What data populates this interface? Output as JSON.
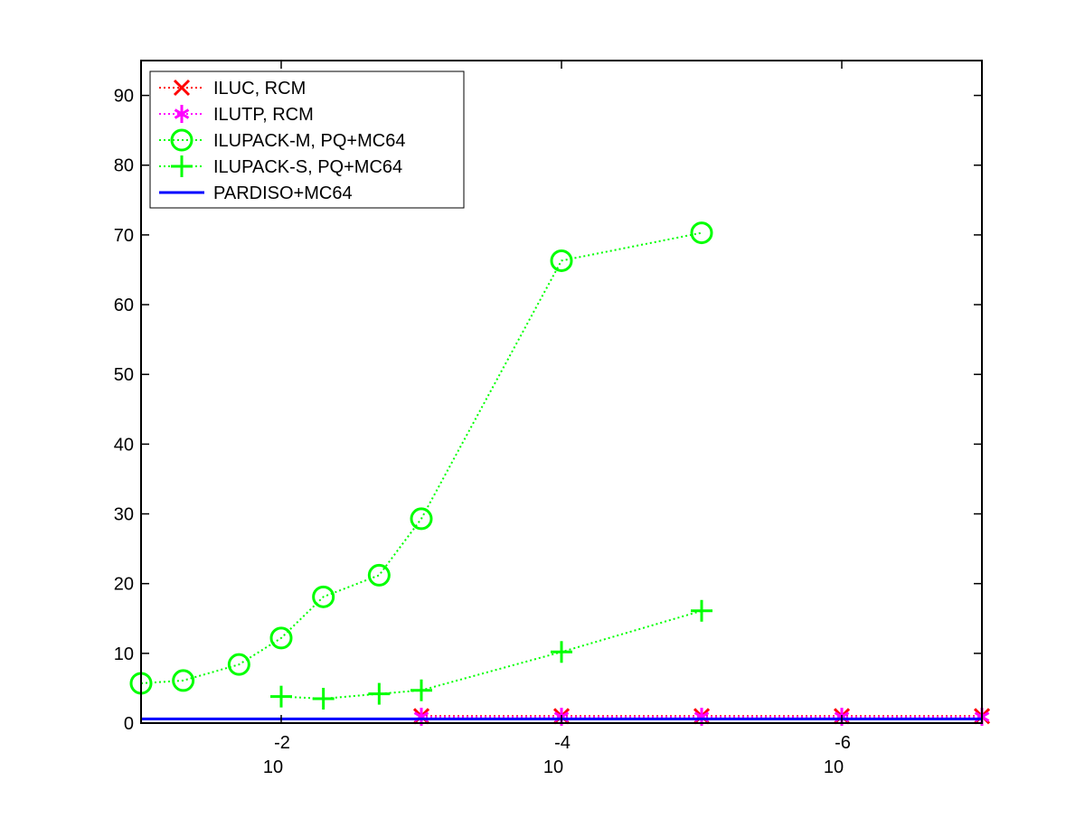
{
  "chart_data": {
    "type": "line",
    "title": "",
    "xlabel": "",
    "ylabel": "",
    "x_scale": "log",
    "x_reversed": true,
    "xlim": [
      0.1,
      1e-07
    ],
    "ylim": [
      0,
      95
    ],
    "x_ticks": [
      {
        "base": "10",
        "exp": "-2"
      },
      {
        "base": "10",
        "exp": "-4"
      },
      {
        "base": "10",
        "exp": "-6"
      }
    ],
    "y_ticks": [
      "0",
      "10",
      "20",
      "30",
      "40",
      "50",
      "60",
      "70",
      "80",
      "90"
    ],
    "legend_position": "top-left",
    "grid": false,
    "series": [
      {
        "name": "ILUC, RCM",
        "color": "#ff0000",
        "marker": "x-mark",
        "line": "dotted",
        "x": [
          0.001,
          0.0001,
          1e-05,
          1e-06,
          1e-07
        ],
        "y": [
          1.0,
          1.0,
          1.0,
          1.0,
          1.0
        ]
      },
      {
        "name": "ILUTP, RCM",
        "color": "#ff00ff",
        "marker": "asterisk",
        "line": "dotted",
        "x": [
          0.001,
          0.0001,
          1e-05,
          1e-06,
          1e-07
        ],
        "y": [
          0.9,
          0.9,
          0.9,
          0.9,
          0.9
        ]
      },
      {
        "name": "ILUPACK-M, PQ+MC64",
        "color": "#00ff00",
        "marker": "circle",
        "line": "dotted",
        "x": [
          0.1,
          0.05,
          0.02,
          0.01,
          0.005,
          0.002,
          0.001,
          0.0001,
          1e-05
        ],
        "y": [
          5.7,
          6.1,
          8.4,
          12.2,
          18.1,
          21.2,
          29.3,
          66.3,
          70.3
        ]
      },
      {
        "name": "ILUPACK-S, PQ+MC64",
        "color": "#00ff00",
        "marker": "plus",
        "line": "dotted",
        "x": [
          0.01,
          0.005,
          0.002,
          0.001,
          0.0001,
          1e-05
        ],
        "y": [
          3.8,
          3.5,
          4.2,
          4.7,
          10.2,
          16.1
        ]
      },
      {
        "name": "PARDISO+MC64",
        "color": "#0000ff",
        "marker": "none",
        "line": "solid",
        "x": [
          0.1,
          1e-07
        ],
        "y": [
          0.6,
          0.6
        ]
      }
    ]
  }
}
